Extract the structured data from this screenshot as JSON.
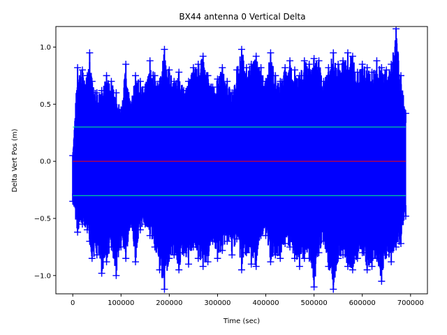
{
  "chart_data": {
    "type": "scatter",
    "title": "BX44 antenna 0 Vertical Delta",
    "xlabel": "Time (sec)",
    "ylabel": "Delta Vert Pos (m)",
    "xlim": [
      -35000,
      735000
    ],
    "ylim": [
      -1.16,
      1.18
    ],
    "x_ticks": [
      0,
      100000,
      200000,
      300000,
      400000,
      500000,
      600000,
      700000
    ],
    "x_tick_labels": [
      "0",
      "100000",
      "200000",
      "300000",
      "400000",
      "500000",
      "600000",
      "700000"
    ],
    "y_ticks": [
      -1.0,
      -0.5,
      0.0,
      0.5,
      1.0
    ],
    "y_tick_labels": [
      "−1.0",
      "−0.5",
      "0.0",
      "0.5",
      "1.0"
    ],
    "marker": "+",
    "series": [
      {
        "color": "#0000ff",
        "envelope": {
          "x": [
            0,
            10000,
            20000,
            30000,
            35000,
            40000,
            50000,
            60000,
            70000,
            80000,
            90000,
            100000,
            110000,
            120000,
            130000,
            140000,
            150000,
            160000,
            170000,
            180000,
            190000,
            200000,
            210000,
            220000,
            230000,
            240000,
            250000,
            260000,
            270000,
            280000,
            290000,
            300000,
            310000,
            320000,
            330000,
            340000,
            350000,
            360000,
            370000,
            380000,
            390000,
            400000,
            410000,
            420000,
            430000,
            440000,
            450000,
            460000,
            470000,
            480000,
            490000,
            500000,
            510000,
            520000,
            530000,
            540000,
            550000,
            560000,
            570000,
            580000,
            590000,
            600000,
            610000,
            620000,
            630000,
            640000,
            650000,
            660000,
            670000,
            680000,
            690000
          ],
          "max": [
            0.05,
            0.82,
            0.8,
            0.75,
            0.95,
            0.7,
            0.6,
            0.62,
            0.75,
            0.7,
            0.6,
            0.45,
            0.85,
            0.5,
            0.75,
            0.7,
            0.65,
            0.88,
            0.75,
            0.7,
            0.98,
            0.8,
            0.7,
            0.78,
            0.62,
            0.7,
            0.82,
            0.85,
            0.92,
            0.75,
            0.65,
            0.72,
            0.82,
            0.7,
            0.6,
            0.8,
            0.98,
            0.82,
            0.85,
            0.92,
            0.82,
            0.7,
            0.95,
            0.75,
            0.7,
            0.82,
            0.88,
            0.8,
            0.75,
            0.88,
            0.85,
            0.9,
            0.88,
            0.7,
            0.82,
            0.95,
            0.85,
            0.88,
            0.95,
            0.92,
            0.78,
            0.85,
            0.82,
            0.78,
            0.88,
            0.82,
            0.8,
            0.85,
            1.16,
            0.75,
            0.42
          ],
          "min": [
            -0.35,
            -0.62,
            -0.55,
            -0.6,
            -0.7,
            -0.85,
            -0.82,
            -0.98,
            -0.88,
            -0.75,
            -1.0,
            -0.75,
            -0.85,
            -0.55,
            -0.88,
            -0.6,
            -0.55,
            -0.65,
            -0.75,
            -0.95,
            -1.12,
            -0.85,
            -0.82,
            -0.95,
            -0.8,
            -0.9,
            -0.75,
            -0.85,
            -0.92,
            -0.88,
            -0.7,
            -0.85,
            -0.78,
            -0.7,
            -0.82,
            -0.68,
            -0.95,
            -0.8,
            -0.9,
            -0.92,
            -0.65,
            -0.65,
            -0.88,
            -0.82,
            -0.85,
            -0.72,
            -0.75,
            -0.85,
            -0.92,
            -0.85,
            -0.85,
            -1.1,
            -0.8,
            -0.7,
            -0.92,
            -1.12,
            -0.85,
            -0.82,
            -0.92,
            -0.95,
            -0.85,
            -0.8,
            -0.95,
            -0.92,
            -0.85,
            -1.05,
            -0.82,
            -0.88,
            -0.75,
            -0.72,
            -0.48
          ]
        }
      }
    ],
    "reference_lines": [
      {
        "y": 0.3,
        "x_range": [
          0,
          690000
        ],
        "color": "#00ff80"
      },
      {
        "y": 0.0,
        "x_range": [
          0,
          690000
        ],
        "color": "#ff0000"
      },
      {
        "y": -0.3,
        "x_range": [
          0,
          690000
        ],
        "color": "#00ff80"
      }
    ],
    "grid": false,
    "legend": "none"
  }
}
